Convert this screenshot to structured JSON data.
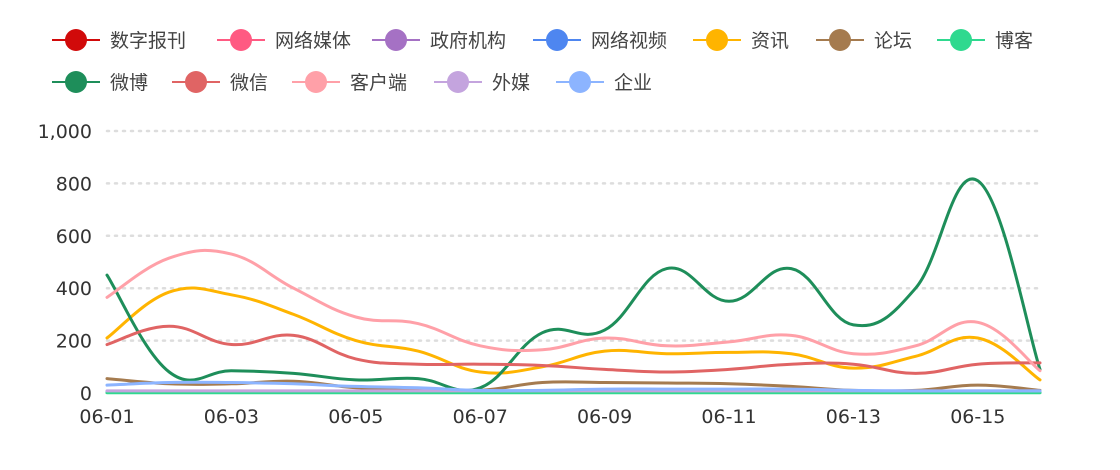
{
  "chart_data": {
    "type": "line",
    "x": [
      "06-01",
      "06-02",
      "06-03",
      "06-04",
      "06-05",
      "06-06",
      "06-07",
      "06-08",
      "06-09",
      "06-10",
      "06-11",
      "06-12",
      "06-13",
      "06-14",
      "06-15",
      "06-16"
    ],
    "x_tick_labels": [
      "06-01",
      "06-03",
      "06-05",
      "06-07",
      "06-09",
      "06-11",
      "06-13",
      "06-15"
    ],
    "ylim": [
      0,
      1000
    ],
    "y_ticks": [
      0,
      200,
      400,
      600,
      800,
      1000
    ],
    "y_tick_labels": [
      "0",
      "200",
      "400",
      "600",
      "800",
      "1,000"
    ],
    "grid": true,
    "legend_position": "top",
    "series": [
      {
        "name": "数字报刊",
        "color": "#d10a0a",
        "values": [
          2,
          2,
          2,
          2,
          2,
          2,
          2,
          2,
          2,
          2,
          2,
          2,
          2,
          2,
          2,
          2
        ]
      },
      {
        "name": "网络媒体",
        "color": "#ff5a82",
        "values": [
          5,
          5,
          5,
          5,
          5,
          5,
          5,
          5,
          5,
          5,
          5,
          5,
          5,
          5,
          5,
          5
        ]
      },
      {
        "name": "政府机构",
        "color": "#a571c4",
        "values": [
          3,
          3,
          3,
          3,
          3,
          3,
          3,
          3,
          3,
          3,
          3,
          3,
          3,
          3,
          3,
          3
        ]
      },
      {
        "name": "网络视频",
        "color": "#4e86f0",
        "values": [
          4,
          4,
          4,
          4,
          4,
          4,
          4,
          4,
          4,
          4,
          4,
          4,
          4,
          4,
          4,
          4
        ]
      },
      {
        "name": "资讯",
        "color": "#ffb400",
        "values": [
          210,
          385,
          375,
          300,
          200,
          160,
          80,
          100,
          160,
          150,
          155,
          150,
          95,
          140,
          210,
          50
        ]
      },
      {
        "name": "论坛",
        "color": "#a57b4f",
        "values": [
          55,
          35,
          35,
          45,
          20,
          15,
          10,
          40,
          40,
          38,
          35,
          25,
          10,
          10,
          30,
          10
        ]
      },
      {
        "name": "博客",
        "color": "#2fd98f",
        "values": [
          1,
          1,
          1,
          1,
          1,
          1,
          1,
          1,
          1,
          1,
          1,
          1,
          1,
          1,
          1,
          1
        ]
      },
      {
        "name": "微博",
        "color": "#1e8e5a",
        "values": [
          450,
          80,
          85,
          75,
          50,
          55,
          20,
          230,
          240,
          475,
          350,
          475,
          260,
          400,
          810,
          90
        ]
      },
      {
        "name": "微信",
        "color": "#e06464",
        "values": [
          185,
          255,
          185,
          220,
          130,
          110,
          110,
          105,
          90,
          80,
          90,
          110,
          110,
          75,
          110,
          115
        ]
      },
      {
        "name": "客户端",
        "color": "#ffa0a8",
        "values": [
          365,
          515,
          530,
          400,
          290,
          265,
          180,
          165,
          210,
          180,
          195,
          220,
          150,
          180,
          270,
          85
        ]
      },
      {
        "name": "外媒",
        "color": "#c4a4de",
        "values": [
          8,
          8,
          8,
          8,
          8,
          8,
          8,
          8,
          8,
          8,
          8,
          8,
          8,
          8,
          8,
          8
        ]
      },
      {
        "name": "企业",
        "color": "#8cb4ff",
        "values": [
          30,
          40,
          40,
          35,
          25,
          20,
          10,
          10,
          15,
          15,
          15,
          15,
          10,
          8,
          8,
          8
        ]
      }
    ]
  }
}
